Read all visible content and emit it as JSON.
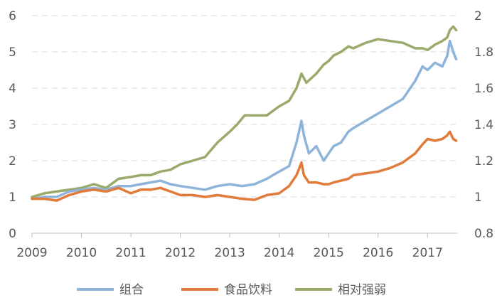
{
  "chart_data": {
    "type": "line",
    "title": "",
    "xlabel": "",
    "ylabel": "",
    "x_ticks": [
      "2009",
      "2010",
      "2011",
      "2012",
      "2013",
      "2014",
      "2015",
      "2016",
      "2017"
    ],
    "y_left": {
      "ticks": [
        "0",
        "1",
        "2",
        "3",
        "4",
        "5",
        "6"
      ],
      "ylim": [
        0,
        6
      ]
    },
    "y_right": {
      "ticks": [
        "0.8",
        "1",
        "1.2",
        "1.4",
        "1.6",
        "1.8",
        "2"
      ],
      "ylim": [
        0.8,
        2.0
      ]
    },
    "grid": "horizontal dashed",
    "legend_position": "bottom",
    "colors": {
      "portfolio": "#8fb4d9",
      "food_beverage": "#e07b39",
      "relative_strength": "#9aaa6a",
      "grid": "#d9d9d9",
      "axis": "#bfbfbf"
    },
    "series": [
      {
        "name": "组合",
        "axis": "left",
        "color": "#8fb4d9",
        "x": [
          2009.0,
          2009.25,
          2009.5,
          2009.75,
          2010.0,
          2010.25,
          2010.5,
          2010.75,
          2011.0,
          2011.2,
          2011.4,
          2011.6,
          2011.8,
          2012.0,
          2012.25,
          2012.5,
          2012.75,
          2013.0,
          2013.25,
          2013.5,
          2013.75,
          2014.0,
          2014.2,
          2014.35,
          2014.45,
          2014.5,
          2014.6,
          2014.75,
          2014.9,
          2015.0,
          2015.1,
          2015.25,
          2015.4,
          2015.5,
          2015.75,
          2016.0,
          2016.25,
          2016.5,
          2016.75,
          2016.9,
          2017.0,
          2017.15,
          2017.3,
          2017.4,
          2017.45,
          2017.52,
          2017.58
        ],
        "values": [
          0.95,
          1.0,
          1.0,
          1.15,
          1.2,
          1.25,
          1.2,
          1.3,
          1.3,
          1.35,
          1.4,
          1.45,
          1.35,
          1.3,
          1.25,
          1.2,
          1.3,
          1.35,
          1.3,
          1.35,
          1.5,
          1.7,
          1.85,
          2.5,
          3.1,
          2.7,
          2.2,
          2.4,
          2.0,
          2.2,
          2.4,
          2.5,
          2.8,
          2.9,
          3.1,
          3.3,
          3.5,
          3.7,
          4.2,
          4.6,
          4.5,
          4.7,
          4.6,
          4.9,
          5.3,
          5.0,
          4.8
        ]
      },
      {
        "name": "食品饮料",
        "axis": "left",
        "color": "#e07b39",
        "x": [
          2009.0,
          2009.25,
          2009.5,
          2009.75,
          2010.0,
          2010.25,
          2010.5,
          2010.75,
          2011.0,
          2011.2,
          2011.4,
          2011.6,
          2011.8,
          2012.0,
          2012.25,
          2012.5,
          2012.75,
          2013.0,
          2013.25,
          2013.5,
          2013.75,
          2014.0,
          2014.2,
          2014.35,
          2014.45,
          2014.5,
          2014.6,
          2014.75,
          2014.9,
          2015.0,
          2015.1,
          2015.25,
          2015.4,
          2015.5,
          2015.75,
          2016.0,
          2016.25,
          2016.5,
          2016.75,
          2016.9,
          2017.0,
          2017.15,
          2017.3,
          2017.4,
          2017.45,
          2017.52,
          2017.58
        ],
        "values": [
          0.95,
          0.95,
          0.9,
          1.05,
          1.15,
          1.2,
          1.15,
          1.25,
          1.1,
          1.2,
          1.2,
          1.25,
          1.15,
          1.05,
          1.05,
          1.0,
          1.05,
          1.0,
          0.95,
          0.92,
          1.05,
          1.1,
          1.3,
          1.6,
          1.95,
          1.6,
          1.4,
          1.4,
          1.35,
          1.35,
          1.4,
          1.45,
          1.5,
          1.6,
          1.65,
          1.7,
          1.8,
          1.95,
          2.2,
          2.45,
          2.6,
          2.55,
          2.6,
          2.7,
          2.8,
          2.6,
          2.55
        ]
      },
      {
        "name": "相对强弱",
        "axis": "right",
        "color": "#9aaa6a",
        "x": [
          2009.0,
          2009.25,
          2009.5,
          2009.75,
          2010.0,
          2010.25,
          2010.5,
          2010.75,
          2011.0,
          2011.2,
          2011.4,
          2011.6,
          2011.8,
          2012.0,
          2012.25,
          2012.5,
          2012.75,
          2013.0,
          2013.15,
          2013.3,
          2013.5,
          2013.75,
          2014.0,
          2014.2,
          2014.35,
          2014.45,
          2014.55,
          2014.75,
          2014.9,
          2015.0,
          2015.1,
          2015.25,
          2015.4,
          2015.5,
          2015.75,
          2016.0,
          2016.25,
          2016.5,
          2016.75,
          2016.9,
          2017.0,
          2017.15,
          2017.3,
          2017.4,
          2017.45,
          2017.52,
          2017.58
        ],
        "values": [
          1.0,
          1.02,
          1.03,
          1.04,
          1.05,
          1.07,
          1.05,
          1.1,
          1.11,
          1.12,
          1.12,
          1.14,
          1.15,
          1.18,
          1.2,
          1.22,
          1.3,
          1.36,
          1.4,
          1.45,
          1.45,
          1.45,
          1.5,
          1.53,
          1.6,
          1.68,
          1.63,
          1.68,
          1.73,
          1.75,
          1.78,
          1.8,
          1.83,
          1.82,
          1.85,
          1.87,
          1.86,
          1.85,
          1.82,
          1.82,
          1.81,
          1.84,
          1.86,
          1.88,
          1.92,
          1.94,
          1.92
        ]
      }
    ]
  }
}
